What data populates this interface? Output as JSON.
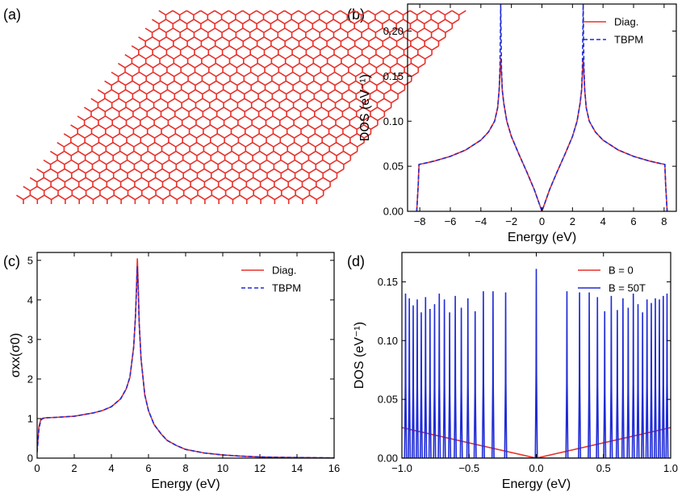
{
  "colors": {
    "red": "#e8302a",
    "blue": "#1f2bd6"
  },
  "panels": {
    "a": {
      "label": "(a)"
    },
    "b": {
      "label": "(b)"
    },
    "c": {
      "label": "(c)"
    },
    "d": {
      "label": "(d)"
    }
  },
  "lattice": {
    "description_rows": 20,
    "description_cols": 20
  },
  "chart_data": [
    {
      "id": "b",
      "type": "line",
      "xlabel": "Energy (eV)",
      "ylabel": "DOS (eV⁻¹)",
      "xlim": [
        -8.8,
        8.8
      ],
      "ylim": [
        0,
        0.23
      ],
      "xticks": [
        -8,
        -6,
        -4,
        -2,
        0,
        2,
        4,
        6,
        8
      ],
      "xtick_labels": [
        "−8",
        "−6",
        "−4",
        "−2",
        "0",
        "2",
        "4",
        "6",
        "8"
      ],
      "yticks": [
        0,
        0.05,
        0.1,
        0.15,
        0.2
      ],
      "ytick_labels": [
        "0.00",
        "0.05",
        "0.10",
        "0.15",
        "0.20"
      ],
      "legend": "top-right",
      "series": [
        {
          "name": "Diag.",
          "style": "solid",
          "color": "#e8302a",
          "x": [
            -8.2,
            -8.1,
            -8.05,
            -7.5,
            -7,
            -6,
            -5,
            -4,
            -3.5,
            -3.1,
            -2.9,
            -2.8,
            -2.7,
            -2.6,
            -2.5,
            -2.3,
            -2,
            -1.5,
            -1,
            -0.5,
            0,
            0.5,
            1,
            1.5,
            2,
            2.3,
            2.5,
            2.6,
            2.7,
            2.8,
            2.9,
            3.1,
            3.5,
            4,
            5,
            6,
            7,
            7.5,
            8.05,
            8.1,
            8.2
          ],
          "y": [
            0,
            0.03,
            0.052,
            0.054,
            0.056,
            0.061,
            0.068,
            0.079,
            0.088,
            0.1,
            0.115,
            0.135,
            0.17,
            0.135,
            0.12,
            0.1,
            0.083,
            0.063,
            0.044,
            0.024,
            0,
            0.024,
            0.044,
            0.063,
            0.083,
            0.1,
            0.12,
            0.135,
            0.17,
            0.135,
            0.115,
            0.1,
            0.088,
            0.079,
            0.068,
            0.061,
            0.056,
            0.054,
            0.052,
            0.03,
            0
          ]
        },
        {
          "name": "TBPM",
          "style": "dashed",
          "color": "#1f2bd6",
          "x": [
            -8.2,
            -8.1,
            -8.05,
            -7.5,
            -7,
            -6,
            -5,
            -4,
            -3.5,
            -3.1,
            -2.9,
            -2.8,
            -2.75,
            -2.72,
            -2.7,
            -2.68,
            -2.65,
            -2.6,
            -2.5,
            -2.3,
            -2,
            -1.5,
            -1,
            -0.5,
            0,
            0.5,
            1,
            1.5,
            2,
            2.3,
            2.5,
            2.6,
            2.65,
            2.68,
            2.7,
            2.72,
            2.75,
            2.8,
            2.9,
            3.1,
            3.5,
            4,
            5,
            6,
            7,
            7.5,
            8.05,
            8.1,
            8.2
          ],
          "y": [
            0,
            0.03,
            0.052,
            0.054,
            0.056,
            0.061,
            0.068,
            0.079,
            0.088,
            0.1,
            0.115,
            0.135,
            0.16,
            0.2,
            0.23,
            0.2,
            0.16,
            0.135,
            0.12,
            0.1,
            0.083,
            0.063,
            0.044,
            0.024,
            0,
            0.024,
            0.044,
            0.063,
            0.083,
            0.1,
            0.12,
            0.135,
            0.16,
            0.2,
            0.23,
            0.2,
            0.16,
            0.135,
            0.115,
            0.1,
            0.088,
            0.079,
            0.068,
            0.061,
            0.056,
            0.054,
            0.052,
            0.03,
            0
          ]
        }
      ]
    },
    {
      "id": "c",
      "type": "line",
      "xlabel": "Energy (eV)",
      "ylabel": "σxx(σ0)",
      "xlim": [
        0,
        16
      ],
      "ylim": [
        0,
        5.2
      ],
      "xticks": [
        0,
        2,
        4,
        6,
        8,
        10,
        12,
        14,
        16
      ],
      "xtick_labels": [
        "0",
        "2",
        "4",
        "6",
        "8",
        "10",
        "12",
        "14",
        "16"
      ],
      "yticks": [
        0,
        1,
        2,
        3,
        4,
        5
      ],
      "ytick_labels": [
        "0",
        "1",
        "2",
        "3",
        "4",
        "5"
      ],
      "legend": "top-right",
      "series": [
        {
          "name": "Diag.",
          "style": "solid",
          "color": "#e8302a",
          "x": [
            0,
            0.05,
            0.1,
            0.2,
            0.3,
            0.5,
            1,
            2,
            3,
            3.5,
            4,
            4.5,
            4.8,
            5,
            5.2,
            5.3,
            5.35,
            5.4,
            5.45,
            5.5,
            5.6,
            5.8,
            6,
            6.3,
            6.7,
            7,
            7.5,
            8,
            9,
            10,
            11,
            12,
            13,
            14,
            15,
            16
          ],
          "y": [
            0.2,
            0.5,
            0.8,
            0.98,
            1.01,
            1.02,
            1.03,
            1.06,
            1.14,
            1.2,
            1.3,
            1.5,
            1.75,
            2.05,
            2.8,
            3.6,
            4.3,
            5.05,
            4.3,
            3.4,
            2.5,
            1.6,
            1.2,
            0.85,
            0.6,
            0.45,
            0.32,
            0.22,
            0.13,
            0.08,
            0.05,
            0.03,
            0.02,
            0.015,
            0.01,
            0.005
          ]
        },
        {
          "name": "TBPM",
          "style": "dashed",
          "color": "#1f2bd6",
          "x": [
            0,
            0.05,
            0.1,
            0.2,
            0.3,
            0.5,
            1,
            2,
            3,
            3.5,
            4,
            4.5,
            4.8,
            5,
            5.2,
            5.3,
            5.35,
            5.4,
            5.45,
            5.5,
            5.6,
            5.8,
            6,
            6.3,
            6.7,
            7,
            7.5,
            8,
            9,
            10,
            11,
            12,
            13,
            14,
            15,
            16
          ],
          "y": [
            0.15,
            0.45,
            0.75,
            0.96,
            1.0,
            1.02,
            1.03,
            1.06,
            1.14,
            1.2,
            1.3,
            1.5,
            1.75,
            2.05,
            2.8,
            3.6,
            4.2,
            4.85,
            4.2,
            3.4,
            2.5,
            1.6,
            1.2,
            0.85,
            0.6,
            0.45,
            0.32,
            0.22,
            0.13,
            0.08,
            0.05,
            0.03,
            0.02,
            0.015,
            0.01,
            0.005
          ]
        }
      ]
    },
    {
      "id": "d",
      "type": "line",
      "xlabel": "Energy (eV)",
      "ylabel": "DOS (eV⁻¹)",
      "xlim": [
        -1,
        1
      ],
      "ylim": [
        0,
        0.175
      ],
      "xticks": [
        -1,
        -0.5,
        0,
        0.5,
        1
      ],
      "xtick_labels": [
        "−1.0",
        "−0.5",
        "0.0",
        "0.5",
        "1.0"
      ],
      "yticks": [
        0,
        0.05,
        0.1,
        0.15
      ],
      "ytick_labels": [
        "0.00",
        "0.05",
        "0.10",
        "0.15"
      ],
      "legend": "top-right",
      "series": [
        {
          "name": "B = 0",
          "style": "solid",
          "color": "#e8302a",
          "x": [
            -1,
            0,
            1
          ],
          "y": [
            0.026,
            0,
            0.026
          ]
        },
        {
          "name": "B = 50T",
          "style": "spikes",
          "color": "#1f2bd6",
          "peaks_x": [
            -0.228,
            -0.322,
            -0.394,
            -0.455,
            -0.509,
            -0.558,
            -0.603,
            -0.645,
            -0.684,
            -0.722,
            -0.757,
            -0.791,
            -0.824,
            -0.856,
            -0.886,
            -0.916,
            -0.945,
            -0.973,
            0,
            0.228,
            0.322,
            0.394,
            0.455,
            0.509,
            0.558,
            0.603,
            0.645,
            0.684,
            0.722,
            0.757,
            0.791,
            0.824,
            0.856,
            0.886,
            0.916,
            0.945,
            0.973
          ],
          "peaks_y": [
            0.141,
            0.142,
            0.142,
            0.125,
            0.136,
            0.128,
            0.138,
            0.124,
            0.135,
            0.14,
            0.131,
            0.127,
            0.137,
            0.124,
            0.135,
            0.13,
            0.136,
            0.14,
            0.161,
            0.142,
            0.141,
            0.141,
            0.137,
            0.125,
            0.138,
            0.126,
            0.136,
            0.128,
            0.14,
            0.131,
            0.124,
            0.135,
            0.132,
            0.136,
            0.135,
            0.138,
            0.14
          ]
        }
      ]
    }
  ]
}
